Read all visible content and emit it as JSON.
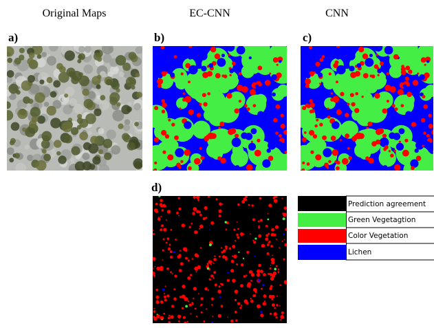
{
  "headers": [
    "Original Maps",
    "EC-CNN",
    "CNN"
  ],
  "panels": {
    "a": "a)",
    "b": "b)",
    "c": "c)",
    "d": "d)"
  },
  "legend": [
    "Prediction agreement",
    "Green Vegetagtion",
    "Color Vegetation",
    "Lichen"
  ]
}
